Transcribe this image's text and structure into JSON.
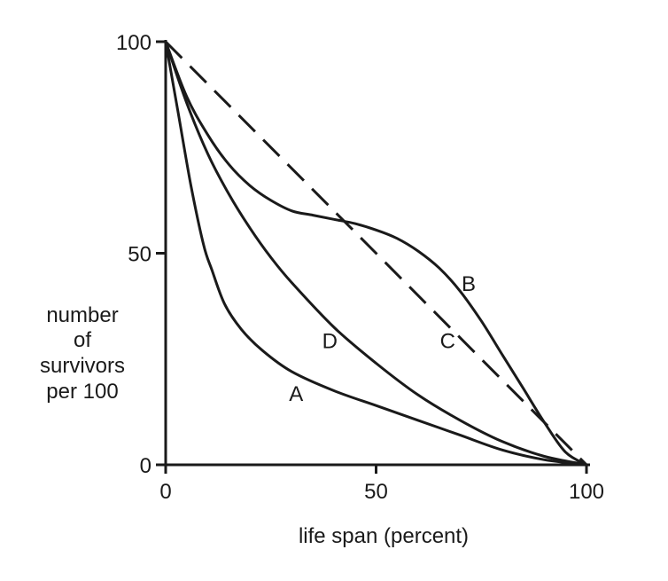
{
  "chart_data": {
    "type": "line",
    "title": "",
    "xlabel": "life span (percent)",
    "ylabel": [
      "number",
      "of",
      "survivors",
      "per 100"
    ],
    "xlim": [
      0,
      100
    ],
    "ylim": [
      0,
      100
    ],
    "x_ticks": [
      "0",
      "50",
      "100"
    ],
    "y_ticks": [
      "0",
      "50",
      "100"
    ],
    "grid": false,
    "series": [
      {
        "name": "A",
        "style": "solid",
        "x": [
          0,
          3,
          6,
          9,
          11,
          14,
          18,
          23,
          30,
          40,
          50,
          60,
          70,
          80,
          90,
          100
        ],
        "y": [
          100,
          83,
          66,
          52,
          46,
          38,
          32,
          27,
          22,
          17.5,
          14,
          10.5,
          7,
          3.5,
          1.2,
          0
        ]
      },
      {
        "name": "B",
        "style": "solid",
        "x": [
          0,
          5,
          10,
          15,
          20,
          25,
          30,
          35,
          40,
          45,
          50,
          55,
          60,
          65,
          70,
          75,
          80,
          85,
          90,
          95,
          100
        ],
        "y": [
          100,
          87,
          78,
          71,
          66,
          62.5,
          60,
          59,
          58,
          57,
          55.5,
          53.5,
          50.5,
          46.5,
          41,
          34,
          26,
          18,
          10,
          3,
          0
        ]
      },
      {
        "name": "C",
        "style": "dashed",
        "x": [
          0,
          100
        ],
        "y": [
          100,
          0
        ]
      },
      {
        "name": "D",
        "style": "solid",
        "x": [
          0,
          5,
          10,
          15,
          20,
          25,
          30,
          40,
          50,
          60,
          70,
          80,
          90,
          100
        ],
        "y": [
          100,
          85.5,
          73.5,
          64,
          56,
          49,
          43,
          32.5,
          24,
          16.5,
          10.5,
          5.5,
          2,
          0
        ]
      }
    ],
    "annotations": [
      {
        "text": "A",
        "x": 31,
        "y": 17
      },
      {
        "text": "B",
        "x": 72,
        "y": 43
      },
      {
        "text": "C",
        "x": 67,
        "y": 29.5
      },
      {
        "text": "D",
        "x": 39,
        "y": 29.5
      }
    ]
  }
}
